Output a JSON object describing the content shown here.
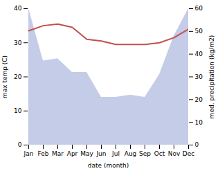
{
  "chart_data": {
    "type": "line",
    "categories": [
      "Jan",
      "Feb",
      "Mar",
      "Apr",
      "May",
      "Jun",
      "Jul",
      "Aug",
      "Sep",
      "Oct",
      "Nov",
      "Dec"
    ],
    "xlabel": "date (month)",
    "ylabel": "max temp (C)",
    "y2label": "med. precipitation (kg/m2)",
    "ylim": [
      0,
      40
    ],
    "yticks": [
      0,
      10,
      20,
      30,
      40
    ],
    "y2lim": [
      0,
      60
    ],
    "y2ticks": [
      0,
      10,
      20,
      30,
      40,
      50,
      60
    ],
    "series": [
      {
        "type": "area",
        "axis": "y2",
        "color": "#c5cce8",
        "values": [
          60,
          37,
          38,
          32,
          32,
          21,
          21,
          22,
          21,
          31,
          48,
          60
        ]
      },
      {
        "type": "line",
        "color": "#c0504d",
        "values": [
          33.5,
          35.0,
          35.5,
          34.5,
          31.0,
          30.5,
          29.5,
          29.5,
          29.5,
          30.0,
          31.5,
          34.0
        ]
      }
    ]
  }
}
